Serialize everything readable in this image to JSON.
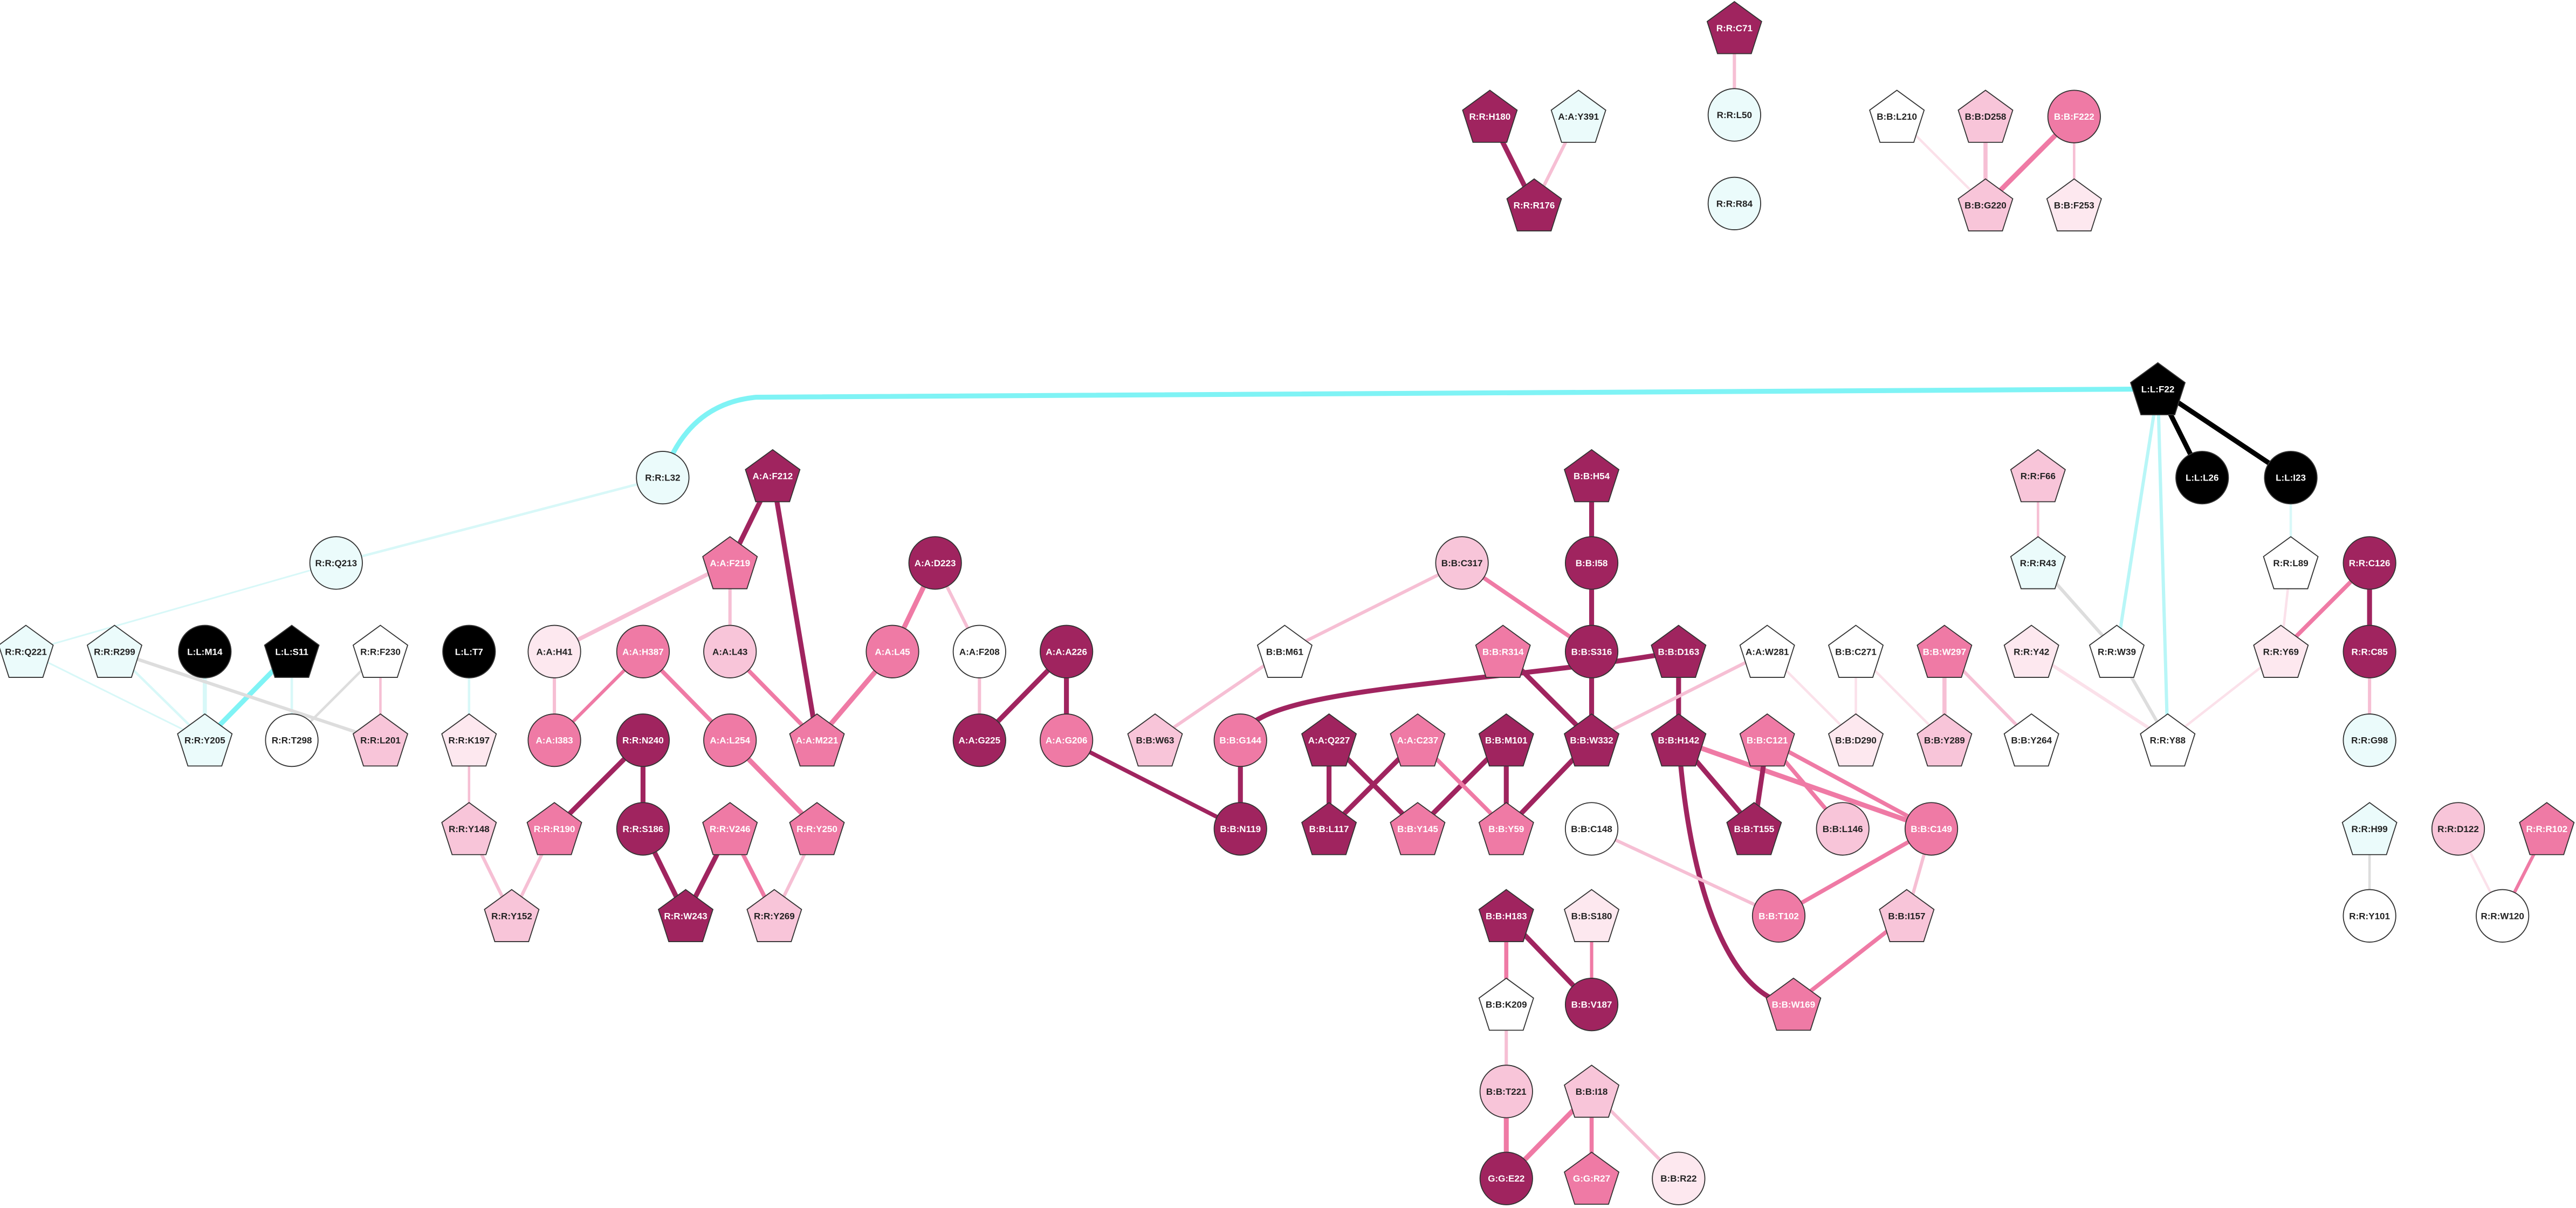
{
  "nodes": [
    {
      "label": "R:R:C71"
    },
    {
      "label": "R:R:L50"
    },
    {
      "label": "R:R:R84"
    },
    {
      "label": "R:R:H180"
    },
    {
      "label": "A:A:Y391"
    },
    {
      "label": "R:R:R176"
    },
    {
      "label": "B:B:L210"
    },
    {
      "label": "B:B:D258"
    },
    {
      "label": "B:B:F222"
    },
    {
      "label": "B:B:G220"
    },
    {
      "label": "B:B:F253"
    },
    {
      "label": "L:L:F22"
    },
    {
      "label": "L:L:L26"
    },
    {
      "label": "L:L:I23"
    },
    {
      "label": "R:R:L32"
    },
    {
      "label": "A:A:F212"
    },
    {
      "label": "R:R:Q213"
    },
    {
      "label": "A:A:F219"
    },
    {
      "label": "A:A:D223"
    },
    {
      "label": "B:B:H54"
    },
    {
      "label": "B:B:I58"
    },
    {
      "label": "B:B:C317"
    },
    {
      "label": "R:R:F66"
    },
    {
      "label": "R:R:R43"
    },
    {
      "label": "R:R:L89"
    },
    {
      "label": "R:R:C126"
    },
    {
      "label": "R:R:Q221"
    },
    {
      "label": "R:R:R299"
    },
    {
      "label": "L:L:M14"
    },
    {
      "label": "L:L:S11"
    },
    {
      "label": "R:R:F230"
    },
    {
      "label": "L:L:T7"
    },
    {
      "label": "A:A:H41"
    },
    {
      "label": "A:A:H387"
    },
    {
      "label": "A:A:L43"
    },
    {
      "label": "A:A:L45"
    },
    {
      "label": "A:A:F208"
    },
    {
      "label": "A:A:A226"
    },
    {
      "label": "B:B:M61"
    },
    {
      "label": "B:B:R314"
    },
    {
      "label": "B:B:S316"
    },
    {
      "label": "B:B:D163"
    },
    {
      "label": "A:A:W281"
    },
    {
      "label": "B:B:C271"
    },
    {
      "label": "B:B:W297"
    },
    {
      "label": "R:R:Y42"
    },
    {
      "label": "R:R:W39"
    },
    {
      "label": "R:R:Y69"
    },
    {
      "label": "R:R:C85"
    },
    {
      "label": "R:R:Y205"
    },
    {
      "label": "R:R:T298"
    },
    {
      "label": "R:R:L201"
    },
    {
      "label": "R:R:K197"
    },
    {
      "label": "A:A:I383"
    },
    {
      "label": "R:R:N240"
    },
    {
      "label": "A:A:L254"
    },
    {
      "label": "A:A:M221"
    },
    {
      "label": "A:A:G225"
    },
    {
      "label": "A:A:G206"
    },
    {
      "label": "B:B:W63"
    },
    {
      "label": "B:B:G144"
    },
    {
      "label": "A:A:Q227"
    },
    {
      "label": "A:A:C237"
    },
    {
      "label": "B:B:M101"
    },
    {
      "label": "B:B:W332"
    },
    {
      "label": "B:B:H142"
    },
    {
      "label": "B:B:C121"
    },
    {
      "label": "B:B:D290"
    },
    {
      "label": "B:B:Y289"
    },
    {
      "label": "B:B:Y264"
    },
    {
      "label": "R:R:Y88"
    },
    {
      "label": "R:R:G98"
    },
    {
      "label": "R:R:Y148"
    },
    {
      "label": "R:R:R190"
    },
    {
      "label": "R:R:S186"
    },
    {
      "label": "R:R:V246"
    },
    {
      "label": "R:R:Y250"
    },
    {
      "label": "B:B:N119"
    },
    {
      "label": "B:B:L117"
    },
    {
      "label": "B:B:Y145"
    },
    {
      "label": "B:B:Y59"
    },
    {
      "label": "B:B:C148"
    },
    {
      "label": "B:B:T155"
    },
    {
      "label": "B:B:L146"
    },
    {
      "label": "B:B:C149"
    },
    {
      "label": "R:R:H99"
    },
    {
      "label": "R:R:D122"
    },
    {
      "label": "R:R:R102"
    },
    {
      "label": "R:R:Y152"
    },
    {
      "label": "R:R:W243"
    },
    {
      "label": "R:R:Y269"
    },
    {
      "label": "B:B:H183"
    },
    {
      "label": "B:B:S180"
    },
    {
      "label": "B:B:T102"
    },
    {
      "label": "B:B:I157"
    },
    {
      "label": "R:R:Y101"
    },
    {
      "label": "R:R:W120"
    },
    {
      "label": "B:B:K209"
    },
    {
      "label": "B:B:V187"
    },
    {
      "label": "B:B:W169"
    },
    {
      "label": "B:B:T221"
    },
    {
      "label": "B:B:I18"
    },
    {
      "label": "G:G:E22"
    },
    {
      "label": "G:G:R27"
    },
    {
      "label": "B:B:R22"
    }
  ]
}
